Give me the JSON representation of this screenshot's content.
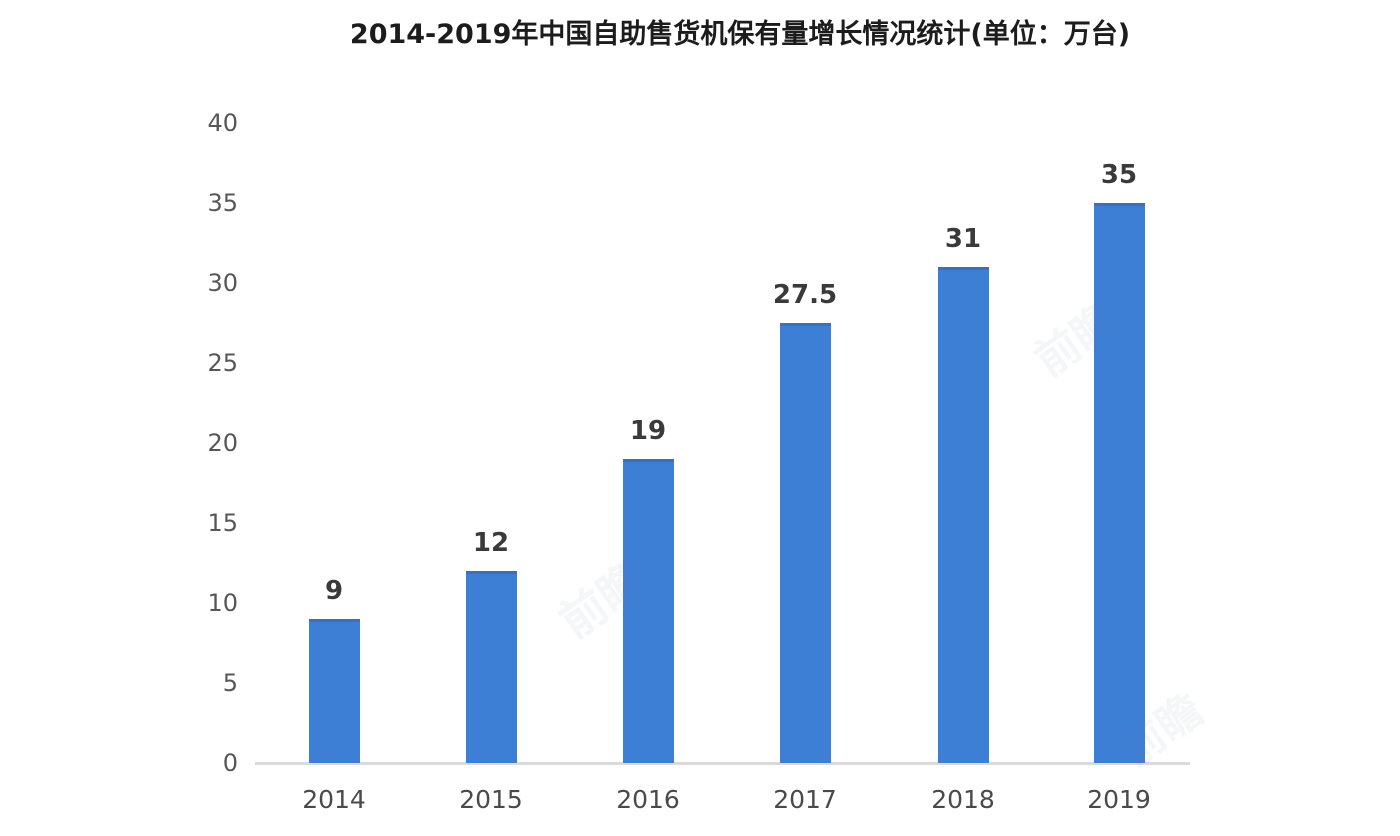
{
  "title": "2014-2019年中国自助售货机保有量增长情况统计(单位：万台)",
  "watermark_text": "前瞻",
  "colors": {
    "bar": "#3e7fd6",
    "bar_top_edge": "#4c6385",
    "axis_line": "#dadada",
    "tick_label": "#575757",
    "value_label": "#3a3a3a",
    "title": "#1c1c1c",
    "background": "#ffffff"
  },
  "chart_data": {
    "type": "bar",
    "title": "2014-2019年中国自助售货机保有量增长情况统计(单位：万台)",
    "unit": "万台",
    "categories": [
      "2014",
      "2015",
      "2016",
      "2017",
      "2018",
      "2019"
    ],
    "values": [
      9,
      12,
      19,
      27.5,
      31,
      35
    ],
    "value_labels": [
      "9",
      "12",
      "19",
      "27.5",
      "31",
      "35"
    ],
    "xlabel": "",
    "ylabel": "",
    "ylim": [
      0,
      40
    ],
    "yticks": [
      0,
      5,
      10,
      15,
      20,
      25,
      30,
      35,
      40
    ],
    "grid": false,
    "legend": false,
    "bar_color": "#3e7fd6"
  }
}
